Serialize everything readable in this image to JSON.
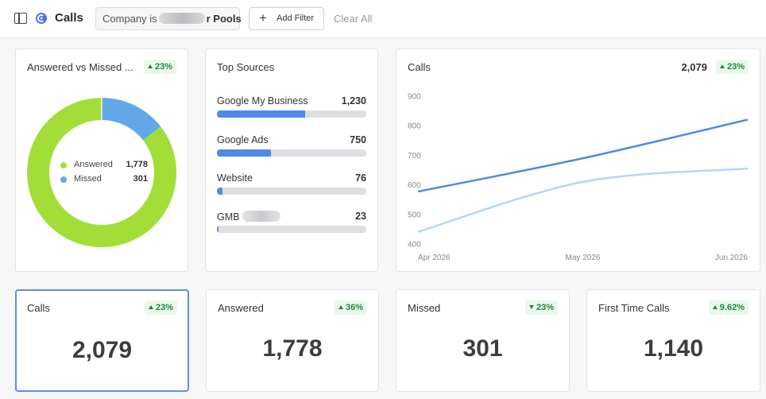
{
  "header": {
    "title": "Calls",
    "filter": {
      "prefix": "Company is",
      "suffix": "r Pools"
    },
    "add_filter_label": "Add Filter",
    "clear_all_label": "Clear All"
  },
  "donut_card": {
    "title": "Answered vs Missed ...",
    "badge": "23%",
    "legend": [
      {
        "label": "Answered",
        "value": "1,778",
        "raw": 1778,
        "color": "#a3de38"
      },
      {
        "label": "Missed",
        "value": "301",
        "raw": 301,
        "color": "#62a8e9"
      }
    ]
  },
  "sources_card": {
    "title": "Top Sources",
    "items": [
      {
        "name": "Google My Business",
        "value": "1,230",
        "fraction": 0.59
      },
      {
        "name": "Google Ads",
        "value": "750",
        "fraction": 0.36
      },
      {
        "name": "Website",
        "value": "76",
        "fraction": 0.036
      },
      {
        "name": "GMB",
        "value": "23",
        "fraction": 0.011
      }
    ]
  },
  "chart_data": {
    "type": "line",
    "title": "Calls",
    "total": "2,079",
    "badge": "23%",
    "x": [
      "Apr 2026",
      "May 2026",
      "Jun 2026"
    ],
    "series": [
      {
        "values": [
          578,
          690,
          820
        ],
        "color": "#4f8ae8"
      },
      {
        "values": [
          442,
          610,
          655
        ],
        "color": "#b5d6f7"
      }
    ],
    "ylim": [
      400,
      900
    ],
    "yticks": [
      400,
      500,
      600,
      700,
      800,
      900
    ],
    "grid": false
  },
  "stats": [
    {
      "title": "Calls",
      "value": "2,079",
      "badge": "23%",
      "trend": "up"
    },
    {
      "title": "Answered",
      "value": "1,778",
      "badge": "36%",
      "trend": "up"
    },
    {
      "title": "Missed",
      "value": "301",
      "badge": "23%",
      "trend": "down"
    },
    {
      "title": "First Time Calls",
      "value": "1,140",
      "badge": "9.62%",
      "trend": "up"
    }
  ]
}
